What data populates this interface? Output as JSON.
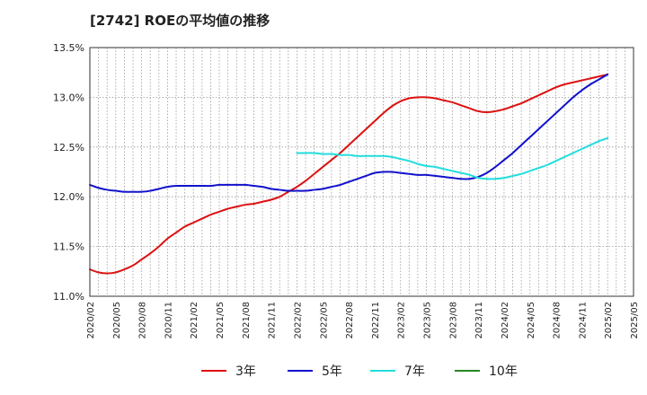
{
  "chart_data": {
    "type": "line",
    "title": "[2742]  ROEの平均値の推移",
    "xlabel": "",
    "ylabel": "",
    "ylim": [
      11.0,
      13.5
    ],
    "yticks": [
      11.0,
      11.5,
      12.0,
      12.5,
      13.0,
      13.5
    ],
    "ytick_labels": [
      "11.0%",
      "11.5%",
      "12.0%",
      "12.5%",
      "13.0%",
      "13.5%"
    ],
    "x_labels": [
      "2020/02",
      "2020/05",
      "2020/08",
      "2020/11",
      "2021/02",
      "2021/05",
      "2021/08",
      "2021/11",
      "2022/02",
      "2022/05",
      "2022/08",
      "2022/11",
      "2023/02",
      "2023/05",
      "2023/08",
      "2023/11",
      "2024/02",
      "2024/05",
      "2024/08",
      "2024/11",
      "2025/02",
      "2025/05"
    ],
    "x_range_months": [
      0,
      63
    ],
    "grid": true,
    "legend_position": "bottom",
    "series": [
      {
        "name": "3年",
        "color": "#dd1111",
        "x": [
          0,
          1,
          2,
          3,
          4,
          5,
          6,
          7,
          8,
          9,
          10,
          11,
          12,
          13,
          14,
          15,
          16,
          17,
          18,
          19,
          20,
          21,
          22,
          23,
          24,
          25,
          26,
          27,
          28,
          29,
          30,
          31,
          32,
          33,
          34,
          35,
          36,
          37,
          38,
          39,
          40,
          41,
          42,
          43,
          44,
          45,
          46,
          47,
          48,
          49,
          50,
          51,
          52,
          53,
          54,
          55,
          56,
          57,
          58,
          59,
          60
        ],
        "values": [
          11.27,
          11.24,
          11.23,
          11.24,
          11.27,
          11.31,
          11.37,
          11.43,
          11.5,
          11.58,
          11.64,
          11.7,
          11.74,
          11.78,
          11.82,
          11.85,
          11.88,
          11.9,
          11.92,
          11.93,
          11.95,
          11.97,
          12.0,
          12.05,
          12.1,
          12.16,
          12.23,
          12.3,
          12.37,
          12.44,
          12.52,
          12.6,
          12.68,
          12.76,
          12.84,
          12.91,
          12.96,
          12.99,
          13.0,
          13.0,
          12.99,
          12.97,
          12.95,
          12.92,
          12.89,
          12.86,
          12.85,
          12.86,
          12.88,
          12.91,
          12.94,
          12.98,
          13.02,
          13.06,
          13.1,
          13.13,
          13.15,
          13.17,
          13.19,
          13.21,
          13.23
        ]
      },
      {
        "name": "5年",
        "color": "#1111cc",
        "x": [
          0,
          1,
          2,
          3,
          4,
          5,
          6,
          7,
          8,
          9,
          10,
          11,
          12,
          13,
          14,
          15,
          16,
          17,
          18,
          19,
          20,
          21,
          22,
          23,
          24,
          25,
          26,
          27,
          28,
          29,
          30,
          31,
          32,
          33,
          34,
          35,
          36,
          37,
          38,
          39,
          40,
          41,
          42,
          43,
          44,
          45,
          46,
          47,
          48,
          49,
          50,
          51,
          52,
          53,
          54,
          55,
          56,
          57,
          58,
          59,
          60
        ],
        "values": [
          12.12,
          12.09,
          12.07,
          12.06,
          12.05,
          12.05,
          12.05,
          12.06,
          12.08,
          12.1,
          12.11,
          12.11,
          12.11,
          12.11,
          12.11,
          12.12,
          12.12,
          12.12,
          12.12,
          12.11,
          12.1,
          12.08,
          12.07,
          12.06,
          12.06,
          12.06,
          12.07,
          12.08,
          12.1,
          12.12,
          12.15,
          12.18,
          12.21,
          12.24,
          12.25,
          12.25,
          12.24,
          12.23,
          12.22,
          12.22,
          12.21,
          12.2,
          12.19,
          12.18,
          12.18,
          12.2,
          12.24,
          12.3,
          12.37,
          12.44,
          12.52,
          12.6,
          12.68,
          12.76,
          12.84,
          12.92,
          13.0,
          13.07,
          13.13,
          13.18,
          13.23
        ]
      },
      {
        "name": "7年",
        "color": "#22dddd",
        "x": [
          24,
          25,
          26,
          27,
          28,
          29,
          30,
          31,
          32,
          33,
          34,
          35,
          36,
          37,
          38,
          39,
          40,
          41,
          42,
          43,
          44,
          45,
          46,
          47,
          48,
          49,
          50,
          51,
          52,
          53,
          54,
          55,
          56,
          57,
          58,
          59,
          60
        ],
        "values": [
          12.44,
          12.44,
          12.44,
          12.43,
          12.43,
          12.42,
          12.42,
          12.41,
          12.41,
          12.41,
          12.41,
          12.4,
          12.38,
          12.36,
          12.33,
          12.31,
          12.3,
          12.28,
          12.26,
          12.24,
          12.22,
          12.19,
          12.18,
          12.18,
          12.19,
          12.21,
          12.23,
          12.26,
          12.29,
          12.32,
          12.36,
          12.4,
          12.44,
          12.48,
          12.52,
          12.56,
          12.59
        ]
      },
      {
        "name": "10年",
        "color": "#228822",
        "x": [],
        "values": []
      }
    ]
  }
}
